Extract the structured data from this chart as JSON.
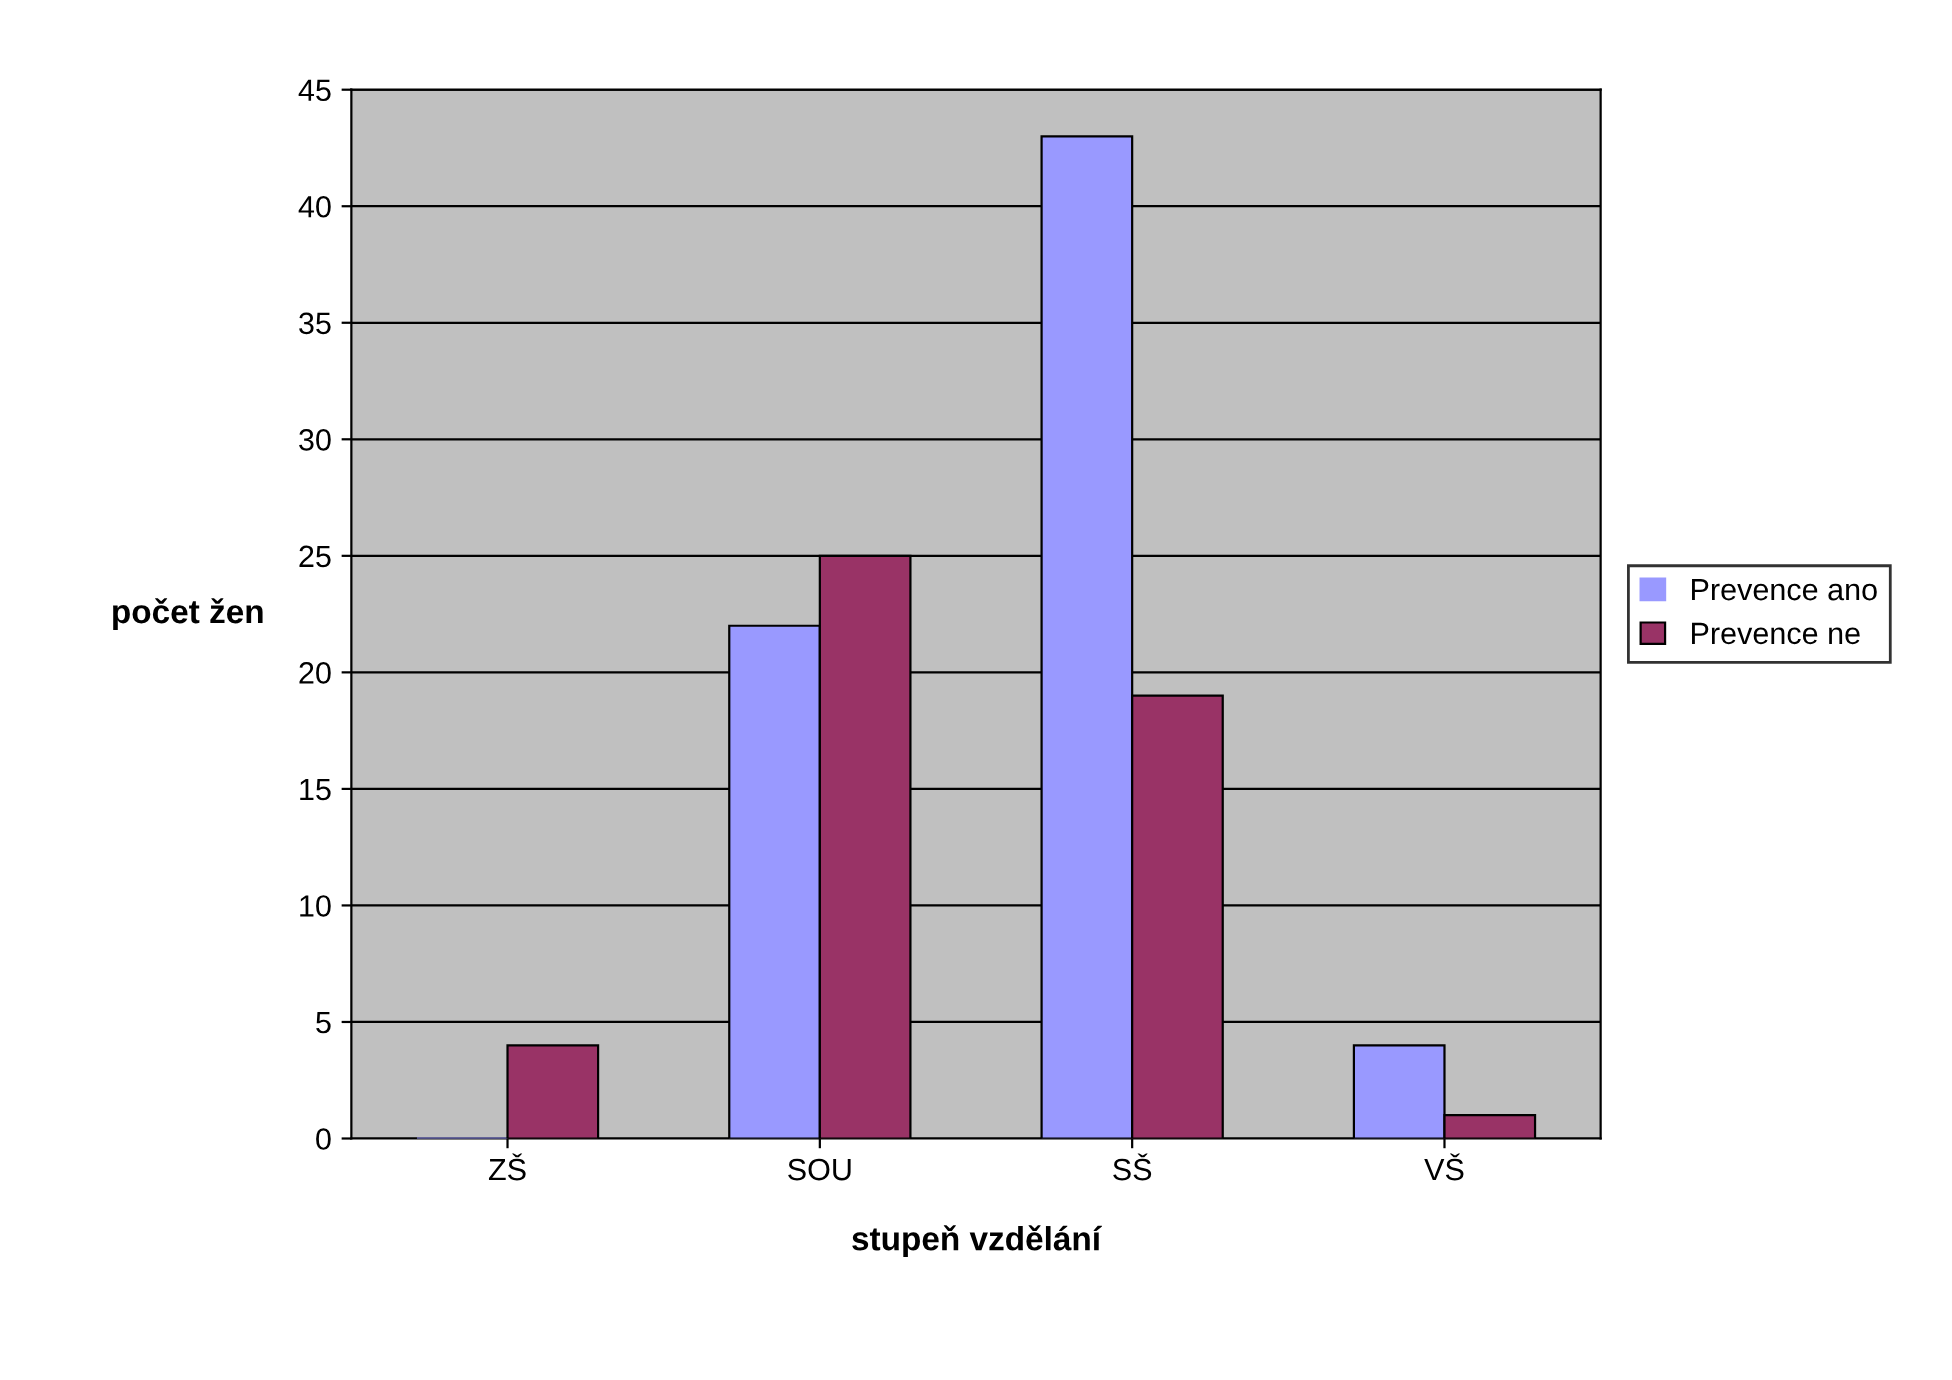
{
  "chart_data": {
    "type": "bar",
    "xlabel": "stupeň vzdělání",
    "ylabel": "počet žen",
    "categories": [
      "ZŠ",
      "SOU",
      "SŠ",
      "VŠ"
    ],
    "series": [
      {
        "name": "Prevence ano",
        "color": "#9999ff",
        "values": [
          0,
          22,
          43,
          4
        ]
      },
      {
        "name": "Prevence ne",
        "color": "#993366",
        "values": [
          4,
          25,
          19,
          1
        ]
      }
    ],
    "ylim": [
      0,
      45
    ],
    "yticks": [
      0,
      5,
      10,
      15,
      20,
      25,
      30,
      35,
      40,
      45
    ],
    "grid": "y",
    "legend": "right"
  }
}
